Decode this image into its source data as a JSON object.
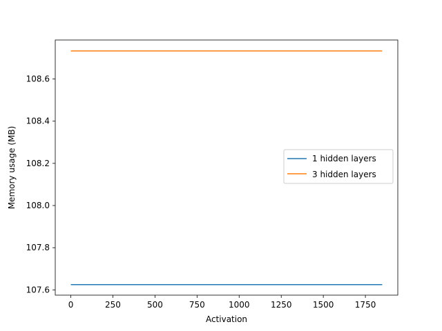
{
  "chart_data": {
    "type": "line",
    "title": "",
    "xlabel": "Activation",
    "ylabel": "Memory usage (MB)",
    "xlim": [
      -92.5,
      1942.5
    ],
    "ylim": [
      107.575,
      108.785
    ],
    "xticks": [
      0,
      250,
      500,
      750,
      1000,
      1250,
      1500,
      1750
    ],
    "xtick_labels": [
      "0",
      "250",
      "500",
      "750",
      "1000",
      "1250",
      "1500",
      "1750"
    ],
    "yticks": [
      107.6,
      107.8,
      108.0,
      108.2,
      108.4,
      108.6
    ],
    "ytick_labels": [
      "107.6",
      "107.8",
      "108.0",
      "108.2",
      "108.4",
      "108.6"
    ],
    "grid": false,
    "legend_position": "center-right",
    "series": [
      {
        "name": "1 hidden layers",
        "color": "#1f77b4",
        "x": [
          0,
          1850
        ],
        "y": [
          107.625,
          107.625
        ]
      },
      {
        "name": "3 hidden layers",
        "color": "#ff7f0e",
        "x": [
          0,
          1850
        ],
        "y": [
          108.733,
          108.733
        ]
      }
    ]
  }
}
